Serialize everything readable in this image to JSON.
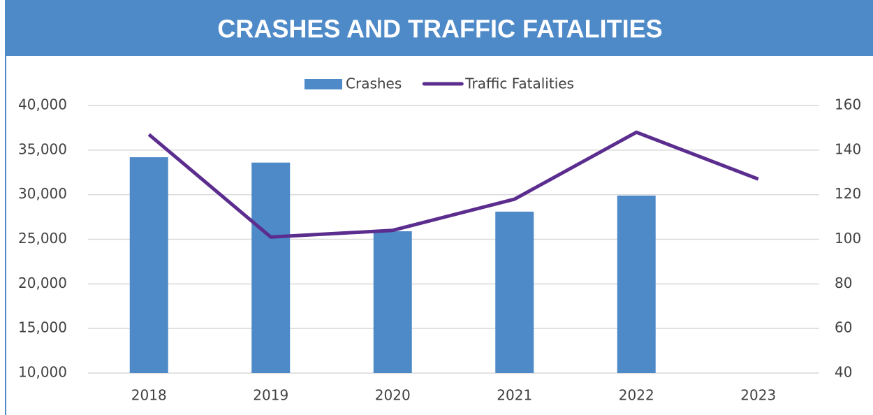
{
  "chart_data": {
    "type": "bar+line",
    "title": "CRASHES AND TRAFFIC FATALITIES",
    "categories": [
      "2018",
      "2019",
      "2020",
      "2021",
      "2022",
      "2023"
    ],
    "series": [
      {
        "name": "Crashes",
        "color": "#4e8ac8",
        "type": "bar",
        "axis": "y",
        "values": [
          34200,
          33600,
          25900,
          28100,
          29900,
          null
        ]
      },
      {
        "name": "Traffic Fatalities",
        "color": "#5b2d8e",
        "type": "line",
        "axis": "y2",
        "values": [
          147,
          101,
          104,
          118,
          148,
          127
        ]
      }
    ],
    "ylim": [
      10000,
      40000
    ],
    "yticks": [
      {
        "value": 10000,
        "label": "10,000"
      },
      {
        "value": 15000,
        "label": "15,000"
      },
      {
        "value": 20000,
        "label": "20,000"
      },
      {
        "value": 25000,
        "label": "25,000"
      },
      {
        "value": 30000,
        "label": "30,000"
      },
      {
        "value": 35000,
        "label": "35,000"
      },
      {
        "value": 40000,
        "label": "40,000"
      }
    ],
    "y2lim": [
      40,
      160
    ],
    "y2ticks": [
      40,
      60,
      80,
      100,
      120,
      140,
      160
    ],
    "grid": true,
    "legend": "top"
  }
}
